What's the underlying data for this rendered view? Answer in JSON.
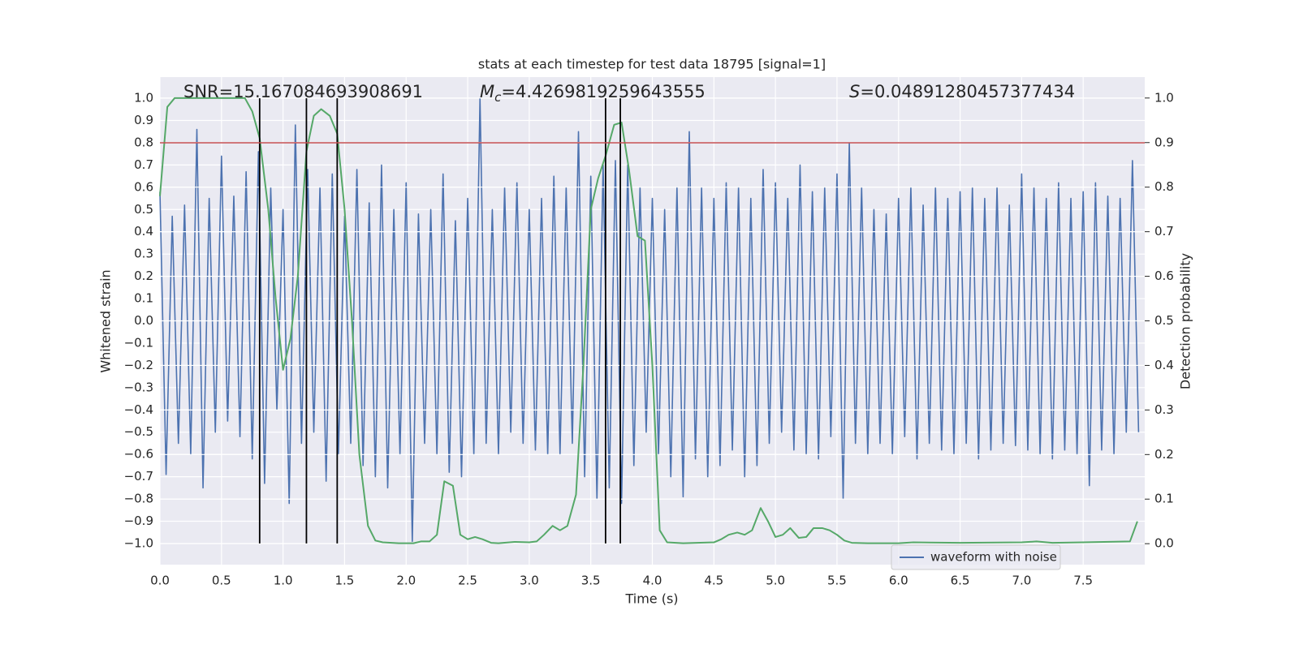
{
  "chart_data": {
    "type": "line",
    "title": "stats at each timestep for test data 18795 [signal=1]",
    "x_label": "Time (s)",
    "y_label": "Whitened strain",
    "y2_label": "Detection probability",
    "annotations": [
      {
        "text": "SNR=15.167084693908691"
      },
      {
        "symbol": "M",
        "subscript": "c",
        "text": "=4.4269819259643555"
      },
      {
        "symbol": "S",
        "text": "=0.04891280457377434"
      }
    ],
    "xlim": [
      0,
      8.0
    ],
    "ylim": [
      -1.095,
      1.095
    ],
    "y2lim": [
      -0.047,
      1.047
    ],
    "xticks": [
      {
        "value": 0,
        "label": "0.0"
      },
      {
        "value": 0.5,
        "label": "0.5"
      },
      {
        "value": 1,
        "label": "1.0"
      },
      {
        "value": 1.5,
        "label": "1.5"
      },
      {
        "value": 2,
        "label": "2.0"
      },
      {
        "value": 2.5,
        "label": "2.5"
      },
      {
        "value": 3,
        "label": "3.0"
      },
      {
        "value": 3.5,
        "label": "3.5"
      },
      {
        "value": 4,
        "label": "4.0"
      },
      {
        "value": 4.5,
        "label": "4.5"
      },
      {
        "value": 5,
        "label": "5.0"
      },
      {
        "value": 5.5,
        "label": "5.5"
      },
      {
        "value": 6,
        "label": "6.0"
      },
      {
        "value": 6.5,
        "label": "6.5"
      },
      {
        "value": 7,
        "label": "7.0"
      },
      {
        "value": 7.5,
        "label": "7.5"
      }
    ],
    "yticks": [
      {
        "value": -1,
        "label": "−1.0"
      },
      {
        "value": -0.9,
        "label": "−0.9"
      },
      {
        "value": -0.8,
        "label": "−0.8"
      },
      {
        "value": -0.7,
        "label": "−0.7"
      },
      {
        "value": -0.6,
        "label": "−0.6"
      },
      {
        "value": -0.5,
        "label": "−0.5"
      },
      {
        "value": -0.4,
        "label": "−0.4"
      },
      {
        "value": -0.3,
        "label": "−0.3"
      },
      {
        "value": -0.2,
        "label": "−0.2"
      },
      {
        "value": -0.1,
        "label": "−0.1"
      },
      {
        "value": 0,
        "label": "0.0"
      },
      {
        "value": 0.1,
        "label": "0.1"
      },
      {
        "value": 0.2,
        "label": "0.2"
      },
      {
        "value": 0.3,
        "label": "0.3"
      },
      {
        "value": 0.4,
        "label": "0.4"
      },
      {
        "value": 0.5,
        "label": "0.5"
      },
      {
        "value": 0.6,
        "label": "0.6"
      },
      {
        "value": 0.7,
        "label": "0.7"
      },
      {
        "value": 0.8,
        "label": "0.8"
      },
      {
        "value": 0.9,
        "label": "0.9"
      },
      {
        "value": 1,
        "label": "1.0"
      }
    ],
    "y2ticks": [
      {
        "value": 0,
        "label": "0.0"
      },
      {
        "value": 0.1,
        "label": "0.1"
      },
      {
        "value": 0.2,
        "label": "0.2"
      },
      {
        "value": 0.3,
        "label": "0.3"
      },
      {
        "value": 0.4,
        "label": "0.4"
      },
      {
        "value": 0.5,
        "label": "0.5"
      },
      {
        "value": 0.6,
        "label": "0.6"
      },
      {
        "value": 0.7,
        "label": "0.7"
      },
      {
        "value": 0.8,
        "label": "0.8"
      },
      {
        "value": 0.9,
        "label": "0.9"
      },
      {
        "value": 1,
        "label": "1.0"
      }
    ],
    "grid": true,
    "legend": "lower right",
    "series": [
      {
        "name": "waveform with noise",
        "color": "#4c72b0",
        "x": [
          0,
          0.05,
          0.1,
          0.15,
          0.2,
          0.25,
          0.3,
          0.35,
          0.4,
          0.45,
          0.5,
          0.55,
          0.6,
          0.65,
          0.7,
          0.75,
          0.8,
          0.85,
          0.9,
          0.95,
          1.0,
          1.05,
          1.1,
          1.15,
          1.2,
          1.25,
          1.3,
          1.35,
          1.4,
          1.45,
          1.5,
          1.55,
          1.6,
          1.65,
          1.7,
          1.75,
          1.8,
          1.85,
          1.9,
          1.95,
          2.0,
          2.05,
          2.1,
          2.15,
          2.2,
          2.25,
          2.3,
          2.35,
          2.4,
          2.45,
          2.5,
          2.55,
          2.6,
          2.65,
          2.7,
          2.75,
          2.8,
          2.85,
          2.9,
          2.95,
          3.0,
          3.05,
          3.1,
          3.15,
          3.2,
          3.25,
          3.3,
          3.35,
          3.4,
          3.45,
          3.5,
          3.55,
          3.6,
          3.65,
          3.7,
          3.75,
          3.8,
          3.85,
          3.9,
          3.95,
          4.0,
          4.05,
          4.1,
          4.15,
          4.2,
          4.25,
          4.3,
          4.35,
          4.4,
          4.45,
          4.5,
          4.55,
          4.6,
          4.65,
          4.7,
          4.75,
          4.8,
          4.85,
          4.9,
          4.95,
          5.0,
          5.05,
          5.1,
          5.15,
          5.2,
          5.25,
          5.3,
          5.35,
          5.4,
          5.45,
          5.5,
          5.55,
          5.6,
          5.65,
          5.7,
          5.75,
          5.8,
          5.85,
          5.9,
          5.95,
          6.0,
          6.05,
          6.1,
          6.15,
          6.2,
          6.25,
          6.3,
          6.35,
          6.4,
          6.45,
          6.5,
          6.55,
          6.6,
          6.65,
          6.7,
          6.75,
          6.8,
          6.85,
          6.9,
          6.95,
          7.0,
          7.05,
          7.1,
          7.15,
          7.2,
          7.25,
          7.3,
          7.35,
          7.4,
          7.45,
          7.5,
          7.55,
          7.6,
          7.65,
          7.7,
          7.75,
          7.8,
          7.85,
          7.9,
          7.95
        ],
        "values": [
          0.58,
          -0.69,
          0.47,
          -0.55,
          0.52,
          -0.6,
          0.86,
          -0.75,
          0.55,
          -0.5,
          0.74,
          -0.45,
          0.56,
          -0.52,
          0.67,
          -0.62,
          0.76,
          -0.73,
          0.6,
          -0.4,
          0.5,
          -0.82,
          0.88,
          -0.55,
          0.68,
          -0.5,
          0.6,
          -0.72,
          0.66,
          -0.6,
          0.47,
          -0.55,
          0.68,
          -0.65,
          0.53,
          -0.7,
          0.7,
          -0.75,
          0.5,
          -0.6,
          0.62,
          -0.99,
          0.48,
          -0.55,
          0.5,
          -0.6,
          0.66,
          -0.68,
          0.45,
          -0.7,
          0.55,
          -0.6,
          1.0,
          -0.55,
          0.5,
          -0.6,
          0.6,
          -0.5,
          0.62,
          -0.55,
          0.5,
          -0.58,
          0.55,
          -0.6,
          0.65,
          -0.6,
          0.6,
          -0.55,
          0.85,
          -0.7,
          0.65,
          -0.8,
          0.7,
          -0.75,
          0.72,
          -0.82,
          0.7,
          -0.65,
          0.6,
          -0.5,
          0.55,
          -0.6,
          0.5,
          -0.7,
          0.6,
          -0.79,
          0.85,
          -0.62,
          0.6,
          -0.7,
          0.55,
          -0.65,
          0.62,
          -0.58,
          0.6,
          -0.7,
          0.55,
          -0.65,
          0.68,
          -0.55,
          0.62,
          -0.5,
          0.55,
          -0.58,
          0.7,
          -0.6,
          0.58,
          -0.62,
          0.6,
          -0.52,
          0.66,
          -0.8,
          0.8,
          -0.55,
          0.6,
          -0.6,
          0.5,
          -0.55,
          0.48,
          -0.6,
          0.55,
          -0.52,
          0.6,
          -0.62,
          0.52,
          -0.55,
          0.6,
          -0.58,
          0.55,
          -0.6,
          0.58,
          -0.55,
          0.6,
          -0.62,
          0.55,
          -0.58,
          0.6,
          -0.55,
          0.52,
          -0.56,
          0.66,
          -0.58,
          0.6,
          -0.6,
          0.55,
          -0.62,
          0.62,
          -0.58,
          0.55,
          -0.6,
          0.58,
          -0.74,
          0.62,
          -0.58,
          0.56,
          -0.6,
          0.55,
          -0.5,
          0.72,
          -0.5
        ]
      },
      {
        "color": "#55a868",
        "axis": "y2",
        "x": [
          0,
          0.06,
          0.12,
          0.25,
          0.5,
          0.69,
          0.75,
          0.81,
          0.88,
          0.94,
          1.0,
          1.06,
          1.12,
          1.19,
          1.25,
          1.31,
          1.38,
          1.44,
          1.5,
          1.56,
          1.62,
          1.69,
          1.75,
          1.81,
          1.94,
          2.06,
          2.12,
          2.19,
          2.25,
          2.31,
          2.38,
          2.44,
          2.5,
          2.56,
          2.62,
          2.69,
          2.75,
          2.88,
          3.0,
          3.06,
          3.12,
          3.19,
          3.25,
          3.31,
          3.38,
          3.44,
          3.5,
          3.56,
          3.62,
          3.69,
          3.75,
          3.81,
          3.88,
          3.94,
          4.0,
          4.06,
          4.12,
          4.25,
          4.5,
          4.56,
          4.62,
          4.69,
          4.75,
          4.81,
          4.88,
          4.94,
          5.0,
          5.06,
          5.12,
          5.19,
          5.25,
          5.31,
          5.38,
          5.44,
          5.5,
          5.56,
          5.62,
          5.75,
          6.0,
          6.12,
          6.5,
          7.0,
          7.12,
          7.25,
          7.5,
          7.88,
          7.94
        ],
        "values": [
          0.78,
          0.98,
          1.0,
          1.0,
          1.0,
          1.0,
          0.97,
          0.91,
          0.75,
          0.55,
          0.39,
          0.46,
          0.6,
          0.88,
          0.96,
          0.975,
          0.96,
          0.92,
          0.75,
          0.5,
          0.2,
          0.04,
          0.007,
          0.003,
          0.001,
          0.001,
          0.005,
          0.005,
          0.02,
          0.14,
          0.13,
          0.02,
          0.01,
          0.015,
          0.01,
          0.002,
          0.001,
          0.004,
          0.003,
          0.005,
          0.02,
          0.04,
          0.03,
          0.04,
          0.11,
          0.4,
          0.75,
          0.82,
          0.87,
          0.94,
          0.945,
          0.84,
          0.69,
          0.68,
          0.4,
          0.03,
          0.003,
          0.001,
          0.003,
          0.01,
          0.02,
          0.025,
          0.02,
          0.03,
          0.08,
          0.05,
          0.015,
          0.02,
          0.035,
          0.013,
          0.015,
          0.035,
          0.035,
          0.03,
          0.02,
          0.007,
          0.002,
          0.001,
          0.001,
          0.003,
          0.002,
          0.003,
          0.005,
          0.002,
          0.003,
          0.005,
          0.05
        ]
      }
    ],
    "vlines": {
      "x": [
        0.81,
        1.19,
        1.44,
        3.62,
        3.74
      ],
      "range": [
        -1,
        1
      ],
      "color": "#000000"
    },
    "hline": {
      "y": 0.8,
      "color": "#c44e52"
    }
  }
}
